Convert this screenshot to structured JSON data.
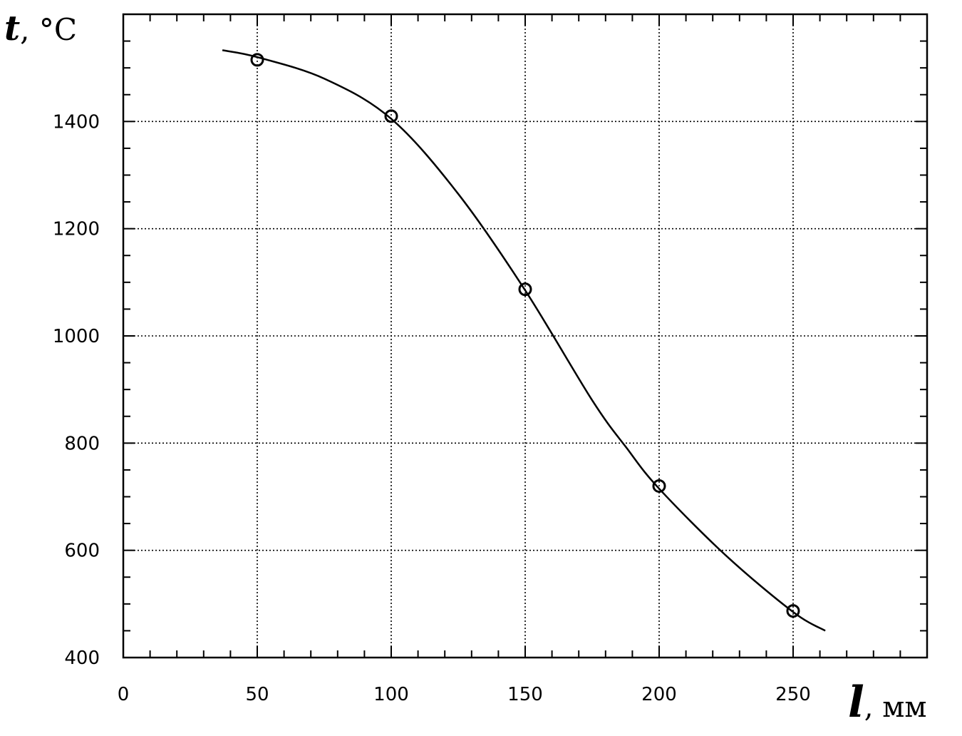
{
  "chart_data": {
    "type": "line",
    "title": "",
    "xlabel": {
      "symbol": "l",
      "unit": ", мм"
    },
    "ylabel": {
      "symbol": "t",
      "unit": ", °C"
    },
    "xlim": [
      0,
      300
    ],
    "ylim": [
      400,
      1600
    ],
    "x_ticks": [
      0,
      50,
      100,
      150,
      200,
      250
    ],
    "x_tick_labels": [
      "0",
      "50",
      "100",
      "150",
      "200",
      "250"
    ],
    "y_ticks": [
      400,
      600,
      800,
      1000,
      1200,
      1400
    ],
    "y_tick_labels": [
      "400",
      "600",
      "800",
      "1000",
      "1200",
      "1400"
    ],
    "x_minor_step": 10,
    "y_minor_step": 50,
    "grid": true,
    "legend": "none",
    "series": [
      {
        "marker": "circle",
        "points": [
          {
            "x": 50,
            "y": 1515
          },
          {
            "x": 100,
            "y": 1410
          },
          {
            "x": 150,
            "y": 1087
          },
          {
            "x": 200,
            "y": 720
          },
          {
            "x": 250,
            "y": 487
          }
        ]
      }
    ],
    "fitted_curve": {
      "x": [
        37,
        50,
        75,
        100,
        125,
        150,
        175,
        188,
        200,
        225,
        250,
        262
      ],
      "y": [
        1533,
        1520,
        1480,
        1405,
        1265,
        1085,
        880,
        790,
        715,
        590,
        485,
        450
      ]
    },
    "colors": {
      "line": "#000000",
      "grid": "#000000",
      "background": "#ffffff"
    }
  }
}
